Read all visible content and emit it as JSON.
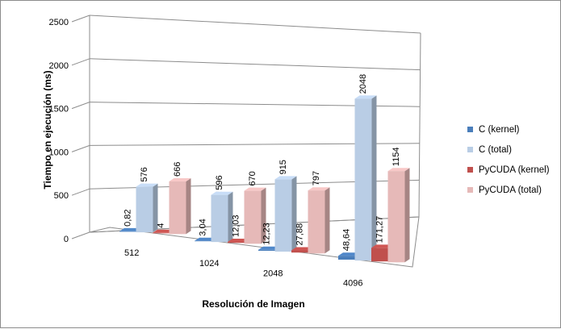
{
  "chart_data": {
    "type": "bar",
    "title": "",
    "xlabel": "Resolución de Imagen",
    "ylabel": "Tiempo  en ejecución (ms)",
    "ylim": [
      0,
      2500
    ],
    "yticks": [
      "0",
      "500",
      "1000",
      "1500",
      "2000",
      "2500"
    ],
    "categories": [
      "512",
      "1024",
      "2048",
      "4096"
    ],
    "grid": true,
    "three_d": true,
    "legend_position": "right",
    "series": [
      {
        "name": "C (kernel)",
        "color": "#4a7ebb",
        "values": [
          0.82,
          3.04,
          12.23,
          48.64
        ],
        "labels": [
          "0,82",
          "3,04",
          "12,23",
          "48,64"
        ]
      },
      {
        "name": "C (total)",
        "color": "#b9cde5",
        "values": [
          576,
          596,
          915,
          2048
        ],
        "labels": [
          "576",
          "596",
          "915",
          "2048"
        ]
      },
      {
        "name": "PyCUDA (kernel)",
        "color": "#c0504d",
        "values": [
          4,
          12.03,
          27.88,
          171.27
        ],
        "labels": [
          "4",
          "12,03",
          "27,88",
          "171,27"
        ]
      },
      {
        "name": "PyCUDA (total)",
        "color": "#e6b9b8",
        "values": [
          666,
          670,
          797,
          1154
        ],
        "labels": [
          "666",
          "670",
          "797",
          "1154"
        ]
      }
    ]
  }
}
